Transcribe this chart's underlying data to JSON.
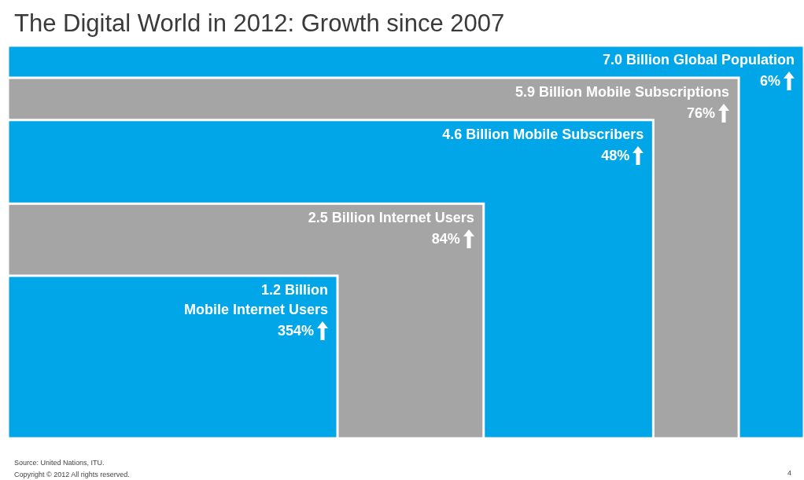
{
  "chart_data": {
    "type": "other",
    "title": "The Digital World in 2012: Growth since 2007",
    "categories": [
      "Global Population",
      "Mobile Subscriptions",
      "Mobile Subscribers",
      "Internet Users",
      "Mobile Internet Users"
    ],
    "series": [
      {
        "values": [
          7.0,
          5.9,
          4.6,
          2.5,
          1.2
        ],
        "value_labels": [
          "7.0 Billion",
          "5.9 Billion",
          "4.6 Billion",
          "2.5 Billion",
          "1.2 Billion"
        ],
        "colors": [
          "#00a6e8",
          "#a5a5a5",
          "#00a6e8",
          "#a5a5a5",
          "#00a6e8"
        ]
      },
      {
        "values": [
          6,
          76,
          48,
          84,
          354
        ],
        "value_labels": [
          "6%",
          "76%",
          "48%",
          "84%",
          "354%"
        ]
      }
    ],
    "data_labels": true,
    "annotations": [
      "Source: United Nations, ITU.",
      "Copyright © 2012 All rights reserved.",
      "4"
    ]
  }
}
